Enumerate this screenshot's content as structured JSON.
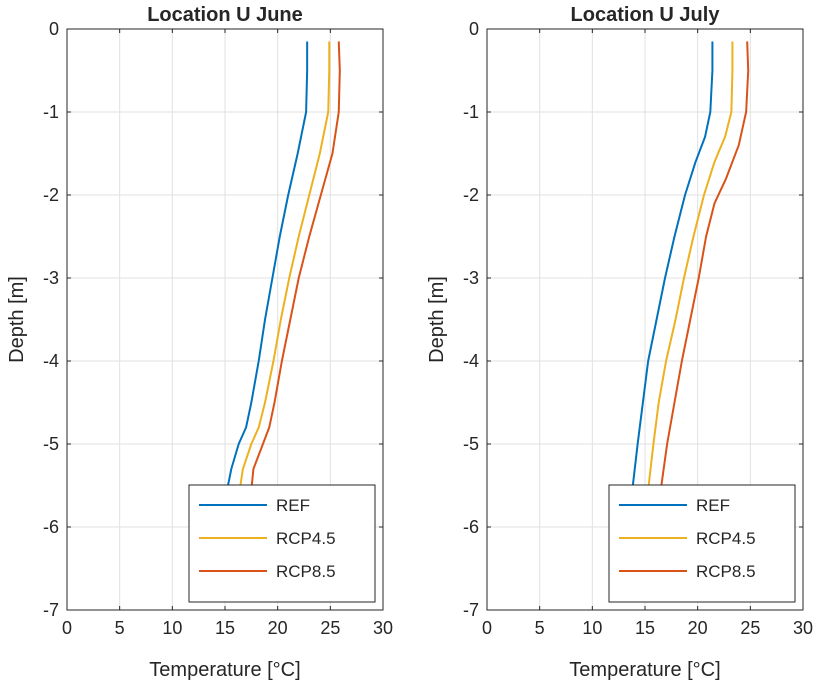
{
  "chart_data": [
    {
      "type": "line",
      "title": "Location U June",
      "xlabel": "Temperature [°C]",
      "ylabel": "Depth [m]",
      "xlim": [
        0,
        30
      ],
      "ylim": [
        -7,
        0
      ],
      "xticks": [
        "0",
        "5",
        "10",
        "15",
        "20",
        "25",
        "30"
      ],
      "yticks": [
        "0",
        "-1",
        "-2",
        "-3",
        "-4",
        "-5",
        "-6",
        "-7"
      ],
      "grid": true,
      "legend_position": "bottom-right",
      "series": [
        {
          "name": "REF",
          "color": "#0072BD",
          "points": [
            [
              22.8,
              -0.15
            ],
            [
              22.8,
              -0.5
            ],
            [
              22.7,
              -1.0
            ],
            [
              21.9,
              -1.5
            ],
            [
              21.0,
              -2.0
            ],
            [
              20.2,
              -2.5
            ],
            [
              19.5,
              -3.0
            ],
            [
              18.8,
              -3.5
            ],
            [
              18.2,
              -4.0
            ],
            [
              17.5,
              -4.5
            ],
            [
              17.0,
              -4.8
            ],
            [
              16.3,
              -5.0
            ],
            [
              15.6,
              -5.3
            ],
            [
              15.2,
              -5.55
            ]
          ]
        },
        {
          "name": "RCP4.5",
          "color": "#EDB120",
          "points": [
            [
              24.9,
              -0.15
            ],
            [
              24.9,
              -0.5
            ],
            [
              24.8,
              -1.0
            ],
            [
              24.0,
              -1.5
            ],
            [
              23.0,
              -2.0
            ],
            [
              22.0,
              -2.5
            ],
            [
              21.1,
              -3.0
            ],
            [
              20.3,
              -3.5
            ],
            [
              19.6,
              -4.0
            ],
            [
              18.8,
              -4.5
            ],
            [
              18.2,
              -4.8
            ],
            [
              17.5,
              -5.0
            ],
            [
              16.7,
              -5.3
            ],
            [
              16.4,
              -5.55
            ]
          ]
        },
        {
          "name": "RCP8.5",
          "color": "#D95319",
          "points": [
            [
              25.8,
              -0.15
            ],
            [
              25.9,
              -0.5
            ],
            [
              25.8,
              -1.0
            ],
            [
              25.2,
              -1.5
            ],
            [
              24.1,
              -2.0
            ],
            [
              23.0,
              -2.5
            ],
            [
              22.0,
              -3.0
            ],
            [
              21.2,
              -3.5
            ],
            [
              20.4,
              -4.0
            ],
            [
              19.7,
              -4.5
            ],
            [
              19.2,
              -4.8
            ],
            [
              18.6,
              -5.0
            ],
            [
              17.7,
              -5.3
            ],
            [
              17.5,
              -5.55
            ]
          ]
        }
      ]
    },
    {
      "type": "line",
      "title": "Location U July",
      "xlabel": "Temperature [°C]",
      "ylabel": "Depth [m]",
      "xlim": [
        0,
        30
      ],
      "ylim": [
        -7,
        0
      ],
      "xticks": [
        "0",
        "5",
        "10",
        "15",
        "20",
        "25",
        "30"
      ],
      "yticks": [
        "0",
        "-1",
        "-2",
        "-3",
        "-4",
        "-5",
        "-6",
        "-7"
      ],
      "grid": true,
      "legend_position": "bottom-right",
      "series": [
        {
          "name": "REF",
          "color": "#0072BD",
          "points": [
            [
              21.4,
              -0.15
            ],
            [
              21.4,
              -0.5
            ],
            [
              21.2,
              -1.0
            ],
            [
              20.7,
              -1.3
            ],
            [
              19.8,
              -1.6
            ],
            [
              18.8,
              -2.0
            ],
            [
              17.8,
              -2.5
            ],
            [
              16.9,
              -3.0
            ],
            [
              16.1,
              -3.5
            ],
            [
              15.3,
              -4.0
            ],
            [
              14.8,
              -4.5
            ],
            [
              14.3,
              -5.0
            ],
            [
              13.8,
              -5.55
            ]
          ]
        },
        {
          "name": "RCP4.5",
          "color": "#EDB120",
          "points": [
            [
              23.3,
              -0.15
            ],
            [
              23.3,
              -0.5
            ],
            [
              23.2,
              -1.0
            ],
            [
              22.6,
              -1.3
            ],
            [
              21.6,
              -1.6
            ],
            [
              20.6,
              -2.0
            ],
            [
              19.6,
              -2.5
            ],
            [
              18.7,
              -3.0
            ],
            [
              17.9,
              -3.5
            ],
            [
              17.0,
              -4.0
            ],
            [
              16.3,
              -4.5
            ],
            [
              15.8,
              -5.0
            ],
            [
              15.3,
              -5.55
            ]
          ]
        },
        {
          "name": "RCP8.5",
          "color": "#D95319",
          "points": [
            [
              24.7,
              -0.15
            ],
            [
              24.8,
              -0.5
            ],
            [
              24.6,
              -1.0
            ],
            [
              23.9,
              -1.4
            ],
            [
              22.7,
              -1.8
            ],
            [
              21.6,
              -2.1
            ],
            [
              20.8,
              -2.5
            ],
            [
              20.1,
              -3.0
            ],
            [
              19.3,
              -3.5
            ],
            [
              18.5,
              -4.0
            ],
            [
              17.8,
              -4.5
            ],
            [
              17.1,
              -5.0
            ],
            [
              16.5,
              -5.55
            ]
          ]
        }
      ]
    }
  ]
}
